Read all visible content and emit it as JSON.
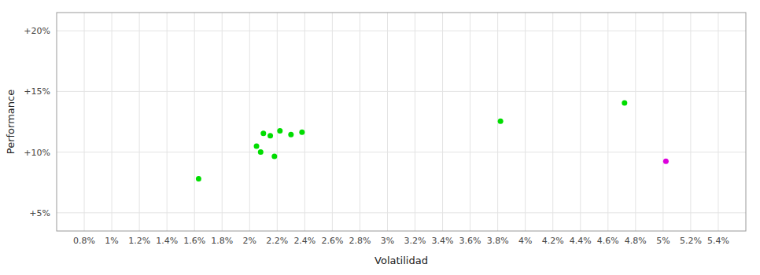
{
  "chart_data": {
    "type": "scatter",
    "xlabel": "Volatilidad",
    "ylabel": "Performance",
    "xlim": [
      0.6,
      5.6
    ],
    "ylim": [
      3.5,
      21.5
    ],
    "xticks": [
      {
        "value": 0.8,
        "label": "0.8%"
      },
      {
        "value": 1.0,
        "label": "1%"
      },
      {
        "value": 1.2,
        "label": "1.2%"
      },
      {
        "value": 1.4,
        "label": "1.4%"
      },
      {
        "value": 1.6,
        "label": "1.6%"
      },
      {
        "value": 1.8,
        "label": "1.8%"
      },
      {
        "value": 2.0,
        "label": "2%"
      },
      {
        "value": 2.2,
        "label": "2.2%"
      },
      {
        "value": 2.4,
        "label": "2.4%"
      },
      {
        "value": 2.6,
        "label": "2.6%"
      },
      {
        "value": 2.8,
        "label": "2.8%"
      },
      {
        "value": 3.0,
        "label": "3%"
      },
      {
        "value": 3.2,
        "label": "3.2%"
      },
      {
        "value": 3.4,
        "label": "3.4%"
      },
      {
        "value": 3.6,
        "label": "3.6%"
      },
      {
        "value": 3.8,
        "label": "3.8%"
      },
      {
        "value": 4.0,
        "label": "4%"
      },
      {
        "value": 4.2,
        "label": "4.2%"
      },
      {
        "value": 4.4,
        "label": "4.4%"
      },
      {
        "value": 4.6,
        "label": "4.6%"
      },
      {
        "value": 4.8,
        "label": "4.8%"
      },
      {
        "value": 5.0,
        "label": "5%"
      },
      {
        "value": 5.2,
        "label": "5.2%"
      },
      {
        "value": 5.4,
        "label": "5.4%"
      }
    ],
    "yticks": [
      {
        "value": 5,
        "label": "+5%"
      },
      {
        "value": 10,
        "label": "+10%"
      },
      {
        "value": 15,
        "label": "+15%"
      },
      {
        "value": 20,
        "label": "+20%"
      }
    ],
    "grid": true,
    "series": [
      {
        "color": "#00dd00",
        "x": [
          1.63,
          2.05,
          2.1,
          2.15,
          2.22,
          2.3,
          2.38,
          2.08,
          2.18,
          3.82,
          4.72
        ],
        "values": [
          7.8,
          10.5,
          11.55,
          11.35,
          11.75,
          11.45,
          11.65,
          10.0,
          9.65,
          12.55,
          14.05
        ]
      },
      {
        "color": "#dd00dd",
        "x": [
          5.02
        ],
        "values": [
          9.25
        ]
      }
    ]
  }
}
